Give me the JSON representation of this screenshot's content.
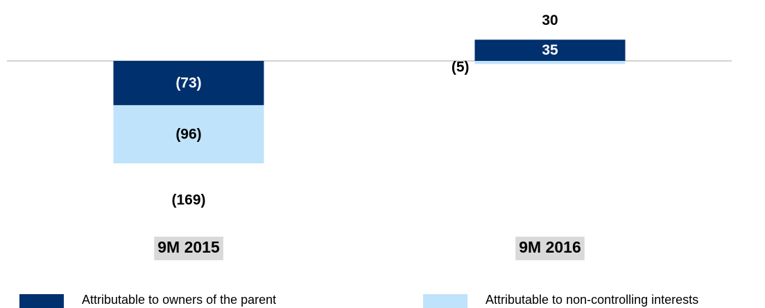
{
  "chart_data": {
    "type": "bar",
    "stacked": true,
    "categories": [
      "9M 2015",
      "9M 2016"
    ],
    "series": [
      {
        "name": "Attributable to owners of the parent",
        "color": "#00306e",
        "values": [
          -73,
          35
        ],
        "value_labels": [
          "(73)",
          "35"
        ]
      },
      {
        "name": "Attributable to non-controlling interests",
        "color": "#bfe3fb",
        "values": [
          -96,
          -5
        ],
        "value_labels": [
          "(96)",
          "(5)"
        ]
      }
    ],
    "totals": [
      -169,
      30
    ],
    "total_labels": [
      "(169)",
      "30"
    ]
  }
}
